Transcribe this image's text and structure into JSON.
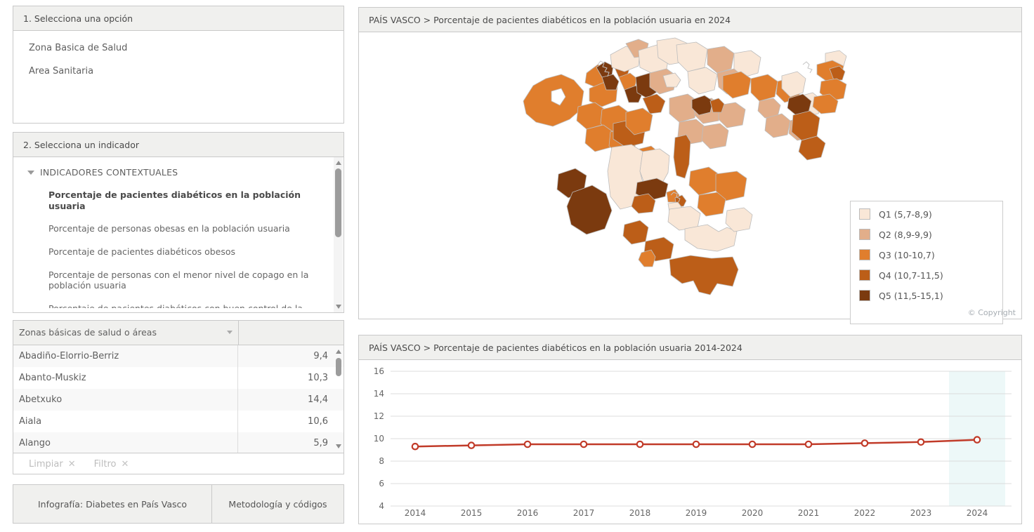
{
  "panel1": {
    "title": "1. Selecciona una opción",
    "options": [
      "Zona Basica de Salud",
      "Area Sanitaria"
    ]
  },
  "panel2": {
    "title": "2. Selecciona un indicador",
    "group_label": "INDICADORES CONTEXTUALES",
    "indicators": [
      {
        "label": "Porcentaje de pacientes diabéticos en la población usuaria",
        "selected": true
      },
      {
        "label": "Porcentaje de personas obesas en la población usuaria",
        "selected": false
      },
      {
        "label": "Porcentaje de pacientes diabéticos obesos",
        "selected": false
      },
      {
        "label": "Porcentaje de personas con el menor nivel de copago en la población usuaria",
        "selected": false
      },
      {
        "label": "Porcentaje de pacientes diabéticos con buen control de la",
        "selected": false,
        "clipped": true
      }
    ]
  },
  "zones_table": {
    "header": "Zonas básicas de salud o áreas",
    "rows": [
      {
        "zone": "Abadiño-Elorrio-Berriz",
        "value": "9,4"
      },
      {
        "zone": "Abanto-Muskiz",
        "value": "10,3"
      },
      {
        "zone": "Abetxuko",
        "value": "14,4"
      },
      {
        "zone": "Aiala",
        "value": "10,6"
      },
      {
        "zone": "Alango",
        "value": "5,9"
      }
    ],
    "actions": {
      "clear_label": "Limpiar",
      "filter_label": "Filtro"
    }
  },
  "footer": {
    "buttons": [
      "Infografía: Diabetes en País Vasco",
      "Metodología y códigos"
    ]
  },
  "map_panel": {
    "title": "PAÍS VASCO > Porcentaje de pacientes diabéticos en la población usuaria en 2024",
    "copyright": "© Copyright",
    "legend": [
      {
        "label": "Q1 (5,7-8,9)",
        "color": "#f9e7d7"
      },
      {
        "label": "Q2 (8,9-9,9)",
        "color": "#e2ae8a"
      },
      {
        "label": "Q3 (10-10,7)",
        "color": "#e07e2d"
      },
      {
        "label": "Q4 (10,7-11,5)",
        "color": "#bc5e18"
      },
      {
        "label": "Q5 (11,5-15,1)",
        "color": "#7b3a0f"
      }
    ]
  },
  "chart_panel": {
    "title": "PAÍS VASCO > Porcentaje de pacientes diabéticos en la población usuaria 2014-2024"
  },
  "chart_data": {
    "type": "line",
    "categories": [
      "2014",
      "2015",
      "2016",
      "2017",
      "2018",
      "2019",
      "2020",
      "2021",
      "2022",
      "2023",
      "2024"
    ],
    "values": [
      9.3,
      9.4,
      9.5,
      9.5,
      9.5,
      9.5,
      9.5,
      9.5,
      9.6,
      9.7,
      9.9
    ],
    "title": "PAÍS VASCO > Porcentaje de pacientes diabéticos en la población usuaria 2014-2024",
    "xlabel": "",
    "ylabel": "",
    "ylim": [
      4,
      16
    ],
    "ytick_step": 2,
    "grid": true,
    "legend_position": "none",
    "line_color": "#c13b29",
    "marker_fill": "#ffffff",
    "grid_color": "#dcdcdc",
    "axis_text_color": "#666666",
    "highlight_category": "2024",
    "highlight_color": "#edf8f8"
  }
}
